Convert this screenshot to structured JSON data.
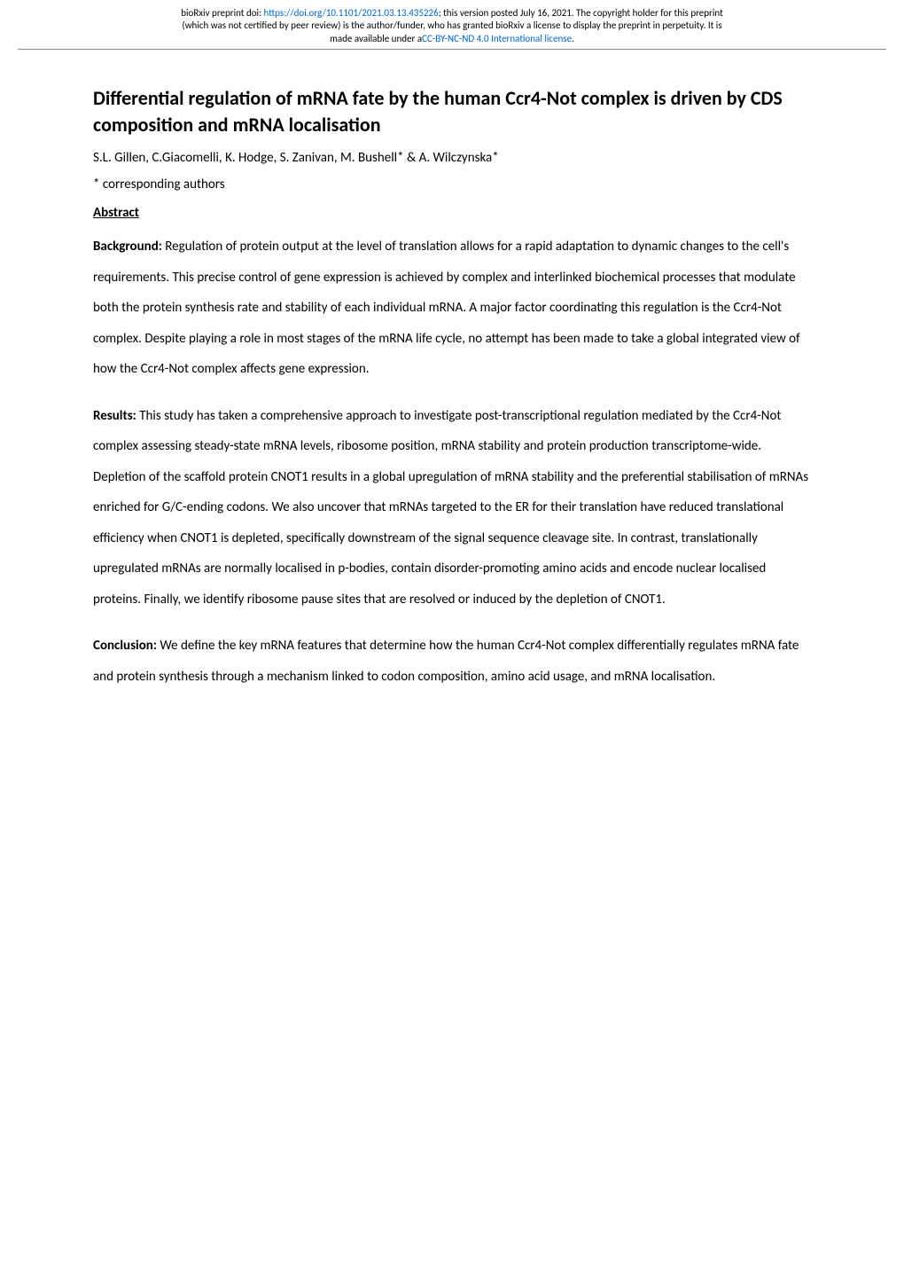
{
  "header": {
    "line1_prefix": "bioRxiv preprint doi: ",
    "doi_url": "https://doi.org/10.1101/2021.03.13.435226",
    "line1_suffix": "; this version posted July 16, 2021. The copyright holder for this preprint",
    "line2": "(which was not certified by peer review) is the author/funder, who has granted bioRxiv a license to display the preprint in perpetuity. It is",
    "line3_prefix": "made available under a",
    "license_link": "CC-BY-NC-ND 4.0 International license",
    "line3_suffix": "."
  },
  "title": "Differential regulation of mRNA fate by the human Ccr4-Not complex is driven by CDS composition and mRNA localisation",
  "authors": "S.L. Gillen, C.Giacomelli, K. Hodge, S. Zanivan, M. Bushell* & A. Wilczynska*",
  "corresponding": "* corresponding authors",
  "abstract_label": "Abstract",
  "sections": {
    "background": {
      "label": "Background: ",
      "text": "Regulation of protein output at the level of translation allows for a rapid adaptation to dynamic changes to the cell's requirements. This precise control of gene expression is achieved by complex and interlinked biochemical processes that modulate both the protein synthesis rate and stability of each individual mRNA. A major factor coordinating this regulation is the Ccr4-Not complex. Despite playing a role in most stages of the mRNA life cycle, no attempt has been made to take a global integrated view of how the Ccr4-Not complex affects gene expression."
    },
    "results": {
      "label": "Results: ",
      "text": "This study has taken a comprehensive approach to investigate post-transcriptional regulation mediated by the Ccr4-Not complex assessing steady-state mRNA levels, ribosome position, mRNA stability and protein production transcriptome-wide. Depletion of the scaffold protein CNOT1 results in a global upregulation of mRNA stability and the preferential stabilisation of mRNAs enriched for G/C-ending codons. We also uncover that mRNAs targeted to the ER for their translation have reduced translational efficiency when CNOT1 is depleted, specifically downstream of the signal sequence cleavage site. In contrast, translationally upregulated mRNAs are normally localised in p-bodies, contain disorder-promoting amino acids and encode nuclear localised proteins. Finally, we identify ribosome pause sites that are resolved or induced by the depletion of CNOT1."
    },
    "conclusion": {
      "label": "Conclusion: ",
      "text": "We define the key mRNA features that determine how the human Ccr4-Not complex differentially regulates mRNA fate and protein synthesis through a mechanism linked to codon composition, amino acid usage, and mRNA localisation."
    }
  },
  "colors": {
    "link": "#0066cc",
    "text": "#000000",
    "background": "#ffffff",
    "divider": "#888888"
  },
  "typography": {
    "header_fontsize": 11,
    "title_fontsize": 22,
    "body_fontsize": 15,
    "line_height_body": 2.3
  }
}
